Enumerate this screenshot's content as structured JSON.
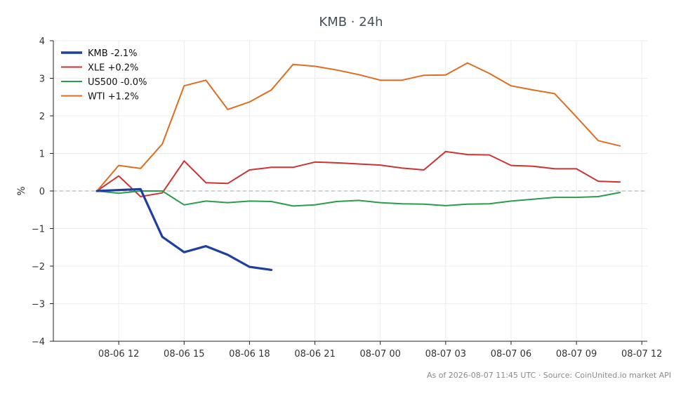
{
  "chart_data": {
    "type": "line",
    "title": "KMB · 24h",
    "ylabel": "%",
    "xlabel": "",
    "ylim": [
      -4,
      4
    ],
    "xlim": [
      "2026-08-06 09:00",
      "2026-08-07 12:15"
    ],
    "grid": true,
    "zero_line": 0,
    "legend_position": "top-left",
    "x": [
      "2026-08-06 11:00",
      "2026-08-06 12:00",
      "2026-08-06 13:00",
      "2026-08-06 14:00",
      "2026-08-06 15:00",
      "2026-08-06 16:00",
      "2026-08-06 17:00",
      "2026-08-06 18:00",
      "2026-08-06 19:00",
      "2026-08-06 20:00",
      "2026-08-06 21:00",
      "2026-08-06 22:00",
      "2026-08-06 23:00",
      "2026-08-07 00:00",
      "2026-08-07 01:00",
      "2026-08-07 02:00",
      "2026-08-07 03:00",
      "2026-08-07 04:00",
      "2026-08-07 05:00",
      "2026-08-07 06:00",
      "2026-08-07 07:00",
      "2026-08-07 08:00",
      "2026-08-07 09:00",
      "2026-08-07 10:00",
      "2026-08-07 11:00"
    ],
    "x_ticks": [
      "08-06 12",
      "08-06 15",
      "08-06 18",
      "08-06 21",
      "08-07 00",
      "08-07 03",
      "08-07 06",
      "08-07 09",
      "08-07 12"
    ],
    "y_ticks": [
      "4",
      "3",
      "2",
      "1",
      "0",
      "−1",
      "−2",
      "−3",
      "−4"
    ],
    "series": [
      {
        "name": "KMB -2.1%",
        "color": "#1f3f9f",
        "bold": true,
        "values": [
          0,
          null,
          0.05,
          -1.22,
          -1.63,
          -1.47,
          -1.7,
          -2.02,
          -2.1,
          null,
          null,
          null,
          null,
          null,
          null,
          null,
          null,
          null,
          null,
          null,
          null,
          null,
          null,
          null,
          null
        ]
      },
      {
        "name": "XLE +0.2%",
        "color": "#cc3333",
        "values": [
          0,
          0.4,
          -0.15,
          -0.05,
          0.8,
          0.22,
          0.2,
          0.56,
          0.63,
          0.63,
          0.77,
          0.75,
          0.72,
          0.69,
          0.61,
          0.56,
          1.05,
          0.97,
          0.96,
          0.68,
          0.66,
          0.59,
          0.59,
          0.26,
          0.24
        ]
      },
      {
        "name": "US500 -0.0%",
        "color": "#2a9d4a",
        "values": [
          0,
          -0.06,
          0,
          0,
          -0.37,
          -0.27,
          -0.31,
          -0.27,
          -0.28,
          -0.4,
          -0.37,
          -0.28,
          -0.25,
          -0.31,
          -0.34,
          -0.35,
          -0.39,
          -0.35,
          -0.34,
          -0.27,
          -0.22,
          -0.17,
          -0.17,
          -0.15,
          -0.04
        ]
      },
      {
        "name": "WTI +1.2%",
        "color": "#e06c1f",
        "values": [
          0,
          0.68,
          0.6,
          1.25,
          2.8,
          2.95,
          2.17,
          2.37,
          2.69,
          3.37,
          3.32,
          3.22,
          3.1,
          2.95,
          2.95,
          3.08,
          3.09,
          3.41,
          3.13,
          2.8,
          2.69,
          2.59,
          1.97,
          1.34,
          1.2
        ]
      }
    ],
    "footnote": "As of 2026-08-07 11:45 UTC · Source: CoinUnited.io market API"
  }
}
